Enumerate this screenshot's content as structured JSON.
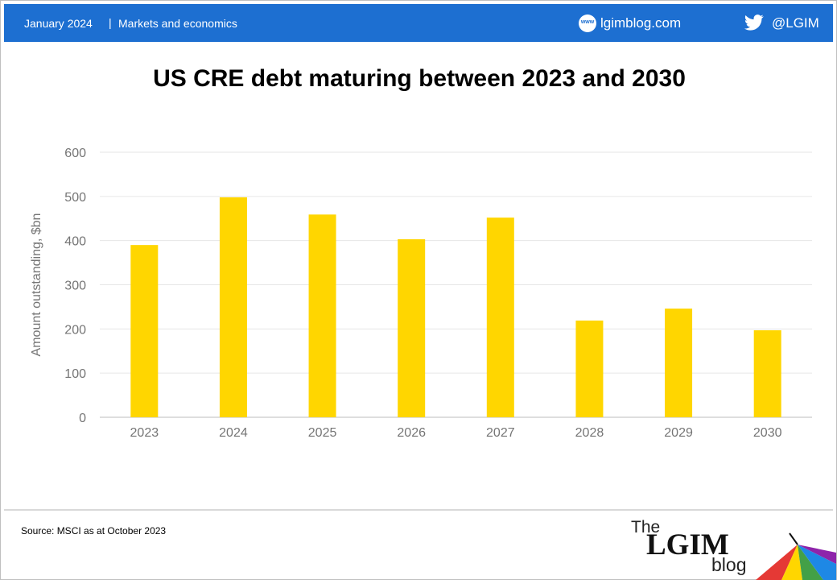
{
  "header": {
    "date": "January 2024",
    "separator": "|",
    "category": "Markets and economics",
    "www_badge": "www",
    "site": "lgimblog.com",
    "handle": "@LGIM",
    "icons": [
      "www-icon",
      "twitter-bird-icon"
    ],
    "bar_color": "#1d6fd1"
  },
  "footer": {
    "source": "Source: MSCI as at October 2023",
    "logo": {
      "the": "The",
      "main": "LGIM",
      "blog": "blog"
    }
  },
  "chart_data": {
    "type": "bar",
    "title": "US CRE debt maturing between 2023 and 2030",
    "categories": [
      "2023",
      "2024",
      "2025",
      "2026",
      "2027",
      "2028",
      "2029",
      "2030"
    ],
    "values": [
      390,
      498,
      459,
      403,
      452,
      219,
      246,
      197
    ],
    "xlabel": "",
    "ylabel": "Amount outstanding, $bn",
    "ylim": [
      0,
      600
    ],
    "yticks": [
      0,
      100,
      200,
      300,
      400,
      500,
      600
    ],
    "bar_color": "#ffd600",
    "grid": true,
    "legend": "none"
  }
}
